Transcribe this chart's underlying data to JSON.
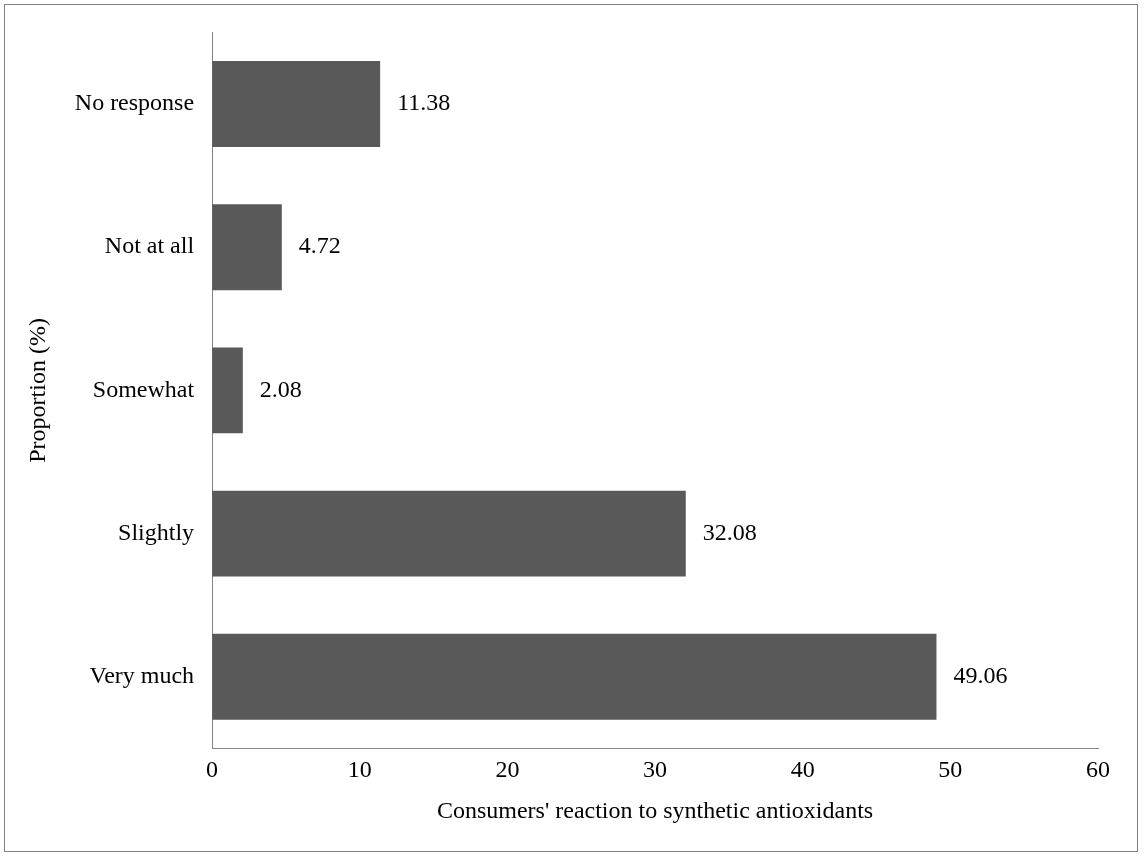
{
  "chart_data": {
    "type": "bar",
    "orientation": "horizontal",
    "xlabel": "Consumers' reaction to synthetic antioxidants",
    "ylabel": "Proportion (%)",
    "categories": [
      "No response",
      "Not at all",
      "Somewhat",
      "Slightly",
      "Very much"
    ],
    "values": [
      11.38,
      4.72,
      2.08,
      32.08,
      49.06
    ],
    "color": "#595959",
    "xlim": [
      0,
      60
    ],
    "xticks": [
      0,
      10,
      20,
      30,
      40,
      50,
      60
    ],
    "grid": false,
    "legend": false,
    "data_labels": true
  }
}
